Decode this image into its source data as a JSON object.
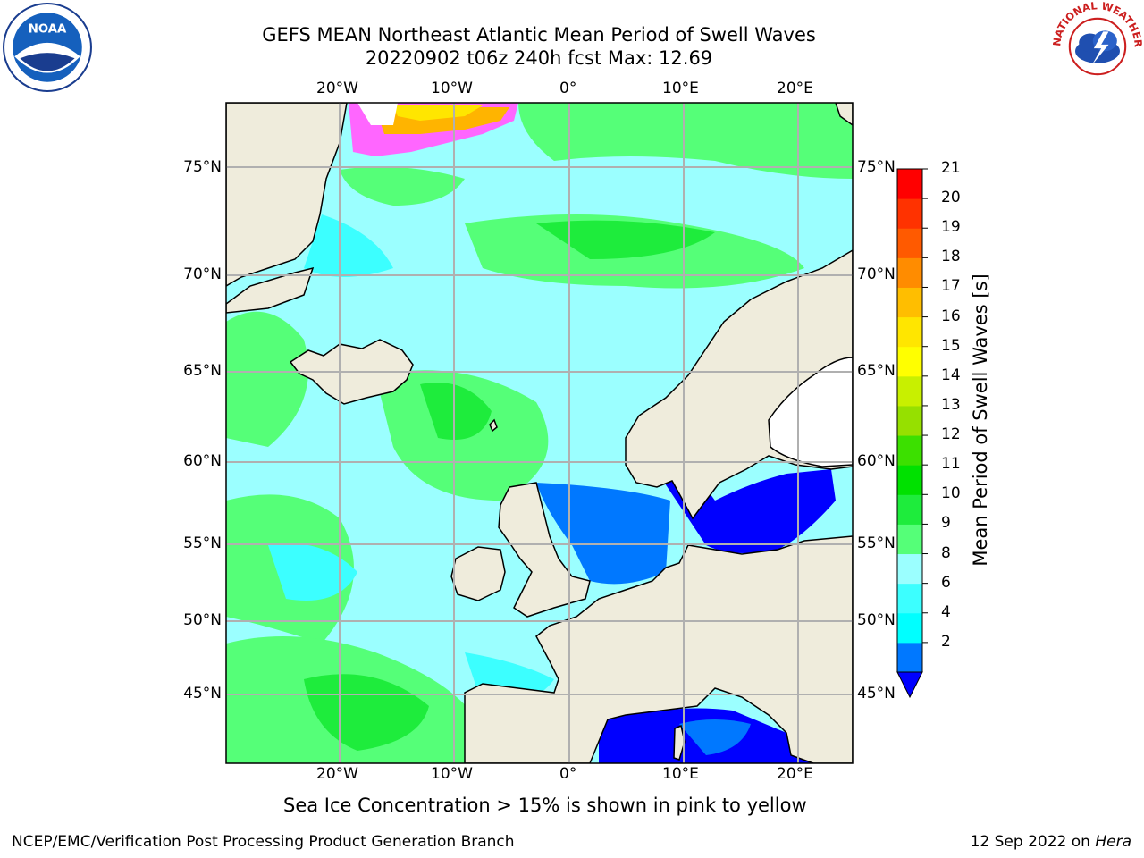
{
  "header": {
    "title_line1": "GEFS MEAN Northeast Atlantic Mean Period of Swell Waves",
    "title_line2": "20220902 t06z 240h fcst   Max: 12.69"
  },
  "map": {
    "longitude_labels": [
      "20°W",
      "10°W",
      "0°",
      "10°E",
      "20°E"
    ],
    "latitude_labels": [
      "75°N",
      "70°N",
      "65°N",
      "60°N",
      "55°N",
      "50°N",
      "45°N"
    ],
    "longitudes": [
      -20,
      -10,
      0,
      10,
      20
    ],
    "latitudes": [
      75,
      70,
      65,
      60,
      55,
      50,
      45
    ],
    "extent": {
      "lon": [
        -30,
        25
      ],
      "lat": [
        41,
        78
      ]
    },
    "colors": {
      "land": "#efecdc",
      "grid": "#b0b0b0",
      "coast": "#000000",
      "frame": "#000000"
    }
  },
  "colorbar": {
    "title": "Mean Period of Swell Waves [s]",
    "ticks": [
      "21",
      "20",
      "19",
      "18",
      "17",
      "16",
      "15",
      "14",
      "13",
      "12",
      "11",
      "10",
      "9",
      "8",
      "6",
      "4",
      "2"
    ],
    "colors": [
      "#0000ff",
      "#0078ff",
      "#00ffff",
      "#3cffff",
      "#9bffff",
      "#55ff78",
      "#1eec3c",
      "#00e100",
      "#3ce000",
      "#96e000",
      "#c8f000",
      "#ffff00",
      "#ffe600",
      "#ffbe00",
      "#ff8c00",
      "#ff5a00",
      "#ff3200",
      "#ff0000"
    ]
  },
  "footer": {
    "note": "Sea Ice Concentration > 15% is shown in pink to yellow",
    "credit": "NCEP/EMC/Verification Post Processing Product Generation Branch",
    "date_prefix": "12 Sep 2022 on ",
    "machine": "Hera"
  },
  "logos": {
    "left": "noaa-logo",
    "right_text": "NATIONAL WEATHER SERVICE"
  }
}
